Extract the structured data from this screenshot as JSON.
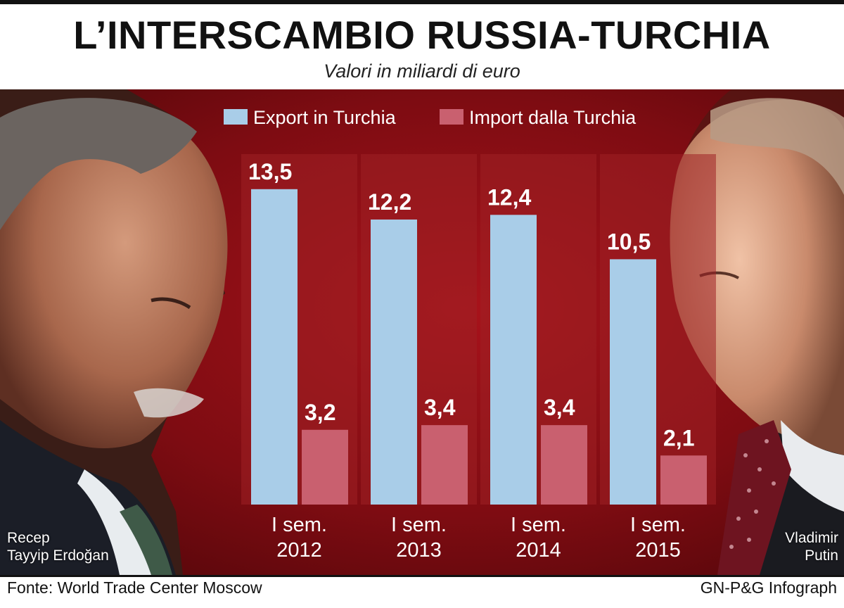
{
  "header": {
    "title": "L’INTERSCAMBIO RUSSIA-TURCHIA",
    "subtitle": "Valori in miliardi di euro"
  },
  "footer": {
    "source": "Fonte: World Trade Center Moscow",
    "credit": "GN-P&G Infograph"
  },
  "people": {
    "left_name_line1": "Recep",
    "left_name_line2": "Tayyip Erdoğan",
    "right_name_line1": "Vladimir",
    "right_name_line2": "Putin"
  },
  "colors": {
    "export": "#a9cde8",
    "import": "#c9606f",
    "background": "#8e0f16"
  },
  "chart_data": {
    "type": "bar",
    "title": "L’INTERSCAMBIO RUSSIA-TURCHIA",
    "subtitle": "Valori in miliardi di euro",
    "categories": [
      "I sem. 2012",
      "I sem. 2013",
      "I sem. 2014",
      "I sem. 2015"
    ],
    "category_lines": [
      [
        "I sem.",
        "2012"
      ],
      [
        "I sem.",
        "2013"
      ],
      [
        "I sem.",
        "2014"
      ],
      [
        "I sem.",
        "2015"
      ]
    ],
    "series": [
      {
        "name": "Export in Turchia",
        "values": [
          13.5,
          12.2,
          12.4,
          10.5
        ],
        "labels": [
          "13,5",
          "12,2",
          "12,4",
          "10,5"
        ],
        "color": "#a9cde8"
      },
      {
        "name": "Import dalla Turchia",
        "values": [
          3.2,
          3.4,
          3.4,
          2.1
        ],
        "labels": [
          "3,2",
          "3,4",
          "3,4",
          "2,1"
        ],
        "color": "#c9606f"
      }
    ],
    "ylim": [
      0,
      15
    ],
    "legend": "top",
    "grid": false
  }
}
